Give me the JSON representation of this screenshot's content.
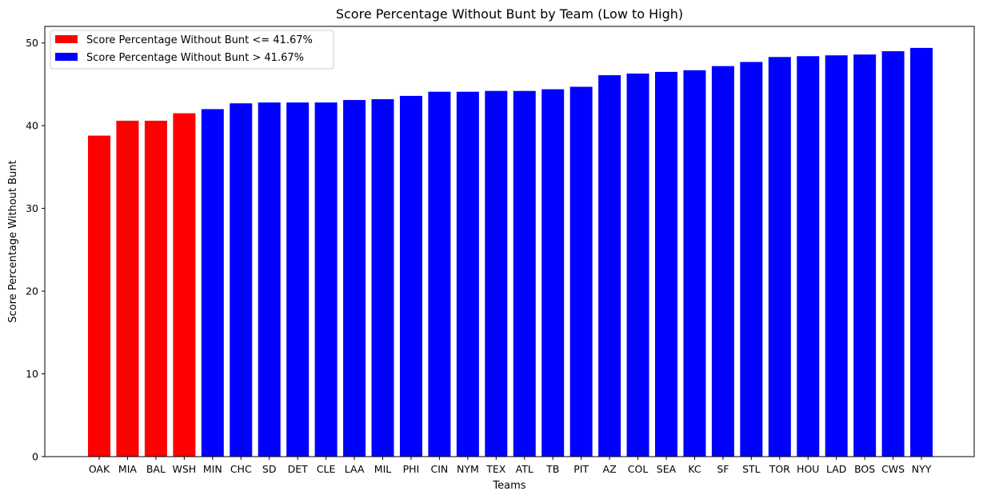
{
  "chart_data": {
    "type": "bar",
    "title": "Score Percentage Without Bunt by Team (Low to High)",
    "xlabel": "Teams",
    "ylabel": "Score Percentage Without Bunt",
    "ylim": [
      0,
      52
    ],
    "yticks": [
      0,
      10,
      20,
      30,
      40,
      50
    ],
    "grid": false,
    "legend_position": "top-left",
    "threshold": 41.67,
    "categories": [
      "OAK",
      "MIA",
      "BAL",
      "WSH",
      "MIN",
      "CHC",
      "SD",
      "DET",
      "CLE",
      "LAA",
      "MIL",
      "PHI",
      "CIN",
      "NYM",
      "TEX",
      "ATL",
      "TB",
      "PIT",
      "AZ",
      "COL",
      "SEA",
      "KC",
      "SF",
      "STL",
      "TOR",
      "HOU",
      "LAD",
      "BOS",
      "CWS",
      "NYY"
    ],
    "values": [
      38.8,
      40.6,
      40.6,
      41.5,
      42.0,
      42.7,
      42.8,
      42.8,
      42.8,
      43.1,
      43.2,
      43.6,
      44.1,
      44.1,
      44.2,
      44.2,
      44.4,
      44.7,
      46.1,
      46.3,
      46.5,
      46.7,
      47.2,
      47.7,
      48.3,
      48.4,
      48.5,
      48.6,
      49.0,
      49.4
    ],
    "legend": [
      {
        "label": "Score Percentage Without Bunt <= 41.67%",
        "color": "#ff0000"
      },
      {
        "label": "Score Percentage Without Bunt > 41.67%",
        "color": "#0000ff"
      }
    ],
    "colors": {
      "low": "#ff0000",
      "high": "#0000ff"
    }
  }
}
